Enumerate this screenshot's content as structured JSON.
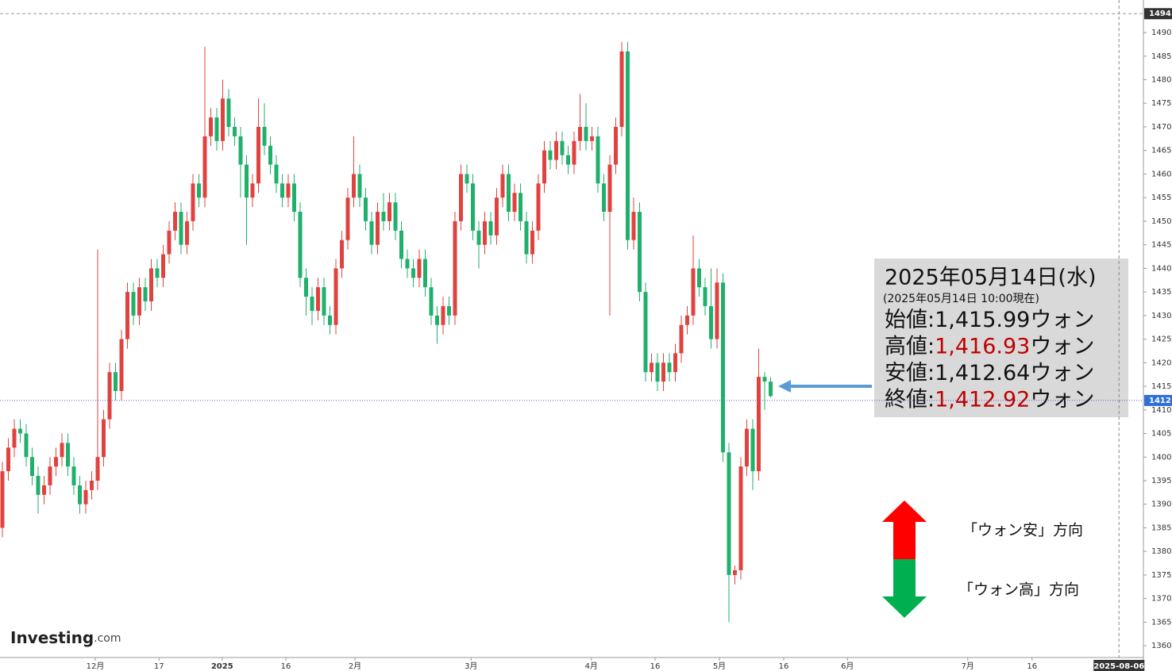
{
  "chart_data": {
    "type": "candlestick",
    "up_color": "#e0433f",
    "down_color": "#1fb06c",
    "ylim": [
      1357.5,
      1496.9
    ],
    "yticks": [
      1360,
      1365,
      1370,
      1375,
      1380,
      1385,
      1390,
      1395,
      1400,
      1405,
      1410,
      1415,
      1420,
      1425,
      1430,
      1435,
      1440,
      1445,
      1450,
      1455,
      1460,
      1465,
      1470,
      1475,
      1480,
      1485,
      1490
    ],
    "xlim": [
      -0.4,
      191.6
    ],
    "xticks": [
      {
        "value": 15.6,
        "label": "12月"
      },
      {
        "value": 26.3,
        "label": "17"
      },
      {
        "value": 36.9,
        "label": "2025",
        "bold": true
      },
      {
        "value": 47.6,
        "label": "16"
      },
      {
        "value": 59.2,
        "label": "2月"
      },
      {
        "value": 78.7,
        "label": "3月"
      },
      {
        "value": 98.9,
        "label": "4月"
      },
      {
        "value": 109.6,
        "label": "16"
      },
      {
        "value": 120.4,
        "label": "5月"
      },
      {
        "value": 131.2,
        "label": "16"
      },
      {
        "value": 141.9,
        "label": "6月"
      },
      {
        "value": 162.1,
        "label": "7月"
      },
      {
        "value": 172.9,
        "label": "16"
      }
    ],
    "cursor_date": {
      "value": 187.5,
      "label": "2025-08-06"
    },
    "top_marker": 1494,
    "last_marker": 1412,
    "ohlc": [
      [
        1385,
        1399,
        1383,
        1397
      ],
      [
        1397,
        1404,
        1395,
        1402
      ],
      [
        1402,
        1408,
        1400,
        1406
      ],
      [
        1406,
        1408,
        1403,
        1405
      ],
      [
        1405,
        1407,
        1398,
        1400
      ],
      [
        1400,
        1402,
        1394,
        1396
      ],
      [
        1396,
        1398,
        1388,
        1392
      ],
      [
        1392,
        1396,
        1390,
        1394
      ],
      [
        1394,
        1400,
        1392,
        1398
      ],
      [
        1398,
        1402,
        1396,
        1400
      ],
      [
        1400,
        1405,
        1398,
        1403
      ],
      [
        1403,
        1405,
        1396,
        1398
      ],
      [
        1398,
        1400,
        1392,
        1394
      ],
      [
        1394,
        1396,
        1388,
        1390
      ],
      [
        1390,
        1395,
        1388,
        1393
      ],
      [
        1393,
        1397,
        1391,
        1395
      ],
      [
        1395,
        1444,
        1393,
        1400
      ],
      [
        1400,
        1410,
        1398,
        1408
      ],
      [
        1408,
        1420,
        1406,
        1418
      ],
      [
        1418,
        1420,
        1412,
        1414
      ],
      [
        1414,
        1427,
        1412,
        1425
      ],
      [
        1425,
        1437,
        1423,
        1435
      ],
      [
        1435,
        1437,
        1428,
        1430
      ],
      [
        1430,
        1438,
        1428,
        1436
      ],
      [
        1436,
        1438,
        1431,
        1433
      ],
      [
        1433,
        1442,
        1431,
        1440
      ],
      [
        1440,
        1442,
        1436,
        1438
      ],
      [
        1438,
        1445,
        1436,
        1443
      ],
      [
        1443,
        1450,
        1441,
        1448
      ],
      [
        1448,
        1454,
        1446,
        1452
      ],
      [
        1452,
        1454,
        1443,
        1445
      ],
      [
        1445,
        1452,
        1443,
        1450
      ],
      [
        1450,
        1460,
        1448,
        1458
      ],
      [
        1458,
        1460,
        1453,
        1455
      ],
      [
        1455,
        1487,
        1453,
        1468
      ],
      [
        1468,
        1474,
        1466,
        1472
      ],
      [
        1472,
        1474,
        1465,
        1467
      ],
      [
        1467,
        1480,
        1465,
        1476
      ],
      [
        1476,
        1478,
        1468,
        1470
      ],
      [
        1470,
        1472,
        1466,
        1468
      ],
      [
        1468,
        1470,
        1455,
        1462
      ],
      [
        1462,
        1464,
        1445,
        1455
      ],
      [
        1455,
        1460,
        1453,
        1458
      ],
      [
        1458,
        1476,
        1456,
        1470
      ],
      [
        1470,
        1475,
        1464,
        1466
      ],
      [
        1466,
        1468,
        1460,
        1462
      ],
      [
        1462,
        1464,
        1456,
        1458
      ],
      [
        1458,
        1460,
        1453,
        1455
      ],
      [
        1455,
        1460,
        1453,
        1458
      ],
      [
        1458,
        1460,
        1450,
        1452
      ],
      [
        1452,
        1454,
        1436,
        1438
      ],
      [
        1438,
        1440,
        1430,
        1434
      ],
      [
        1434,
        1436,
        1428,
        1431
      ],
      [
        1431,
        1438,
        1429,
        1436
      ],
      [
        1436,
        1438,
        1428,
        1430
      ],
      [
        1430,
        1432,
        1426,
        1428
      ],
      [
        1428,
        1442,
        1426,
        1440
      ],
      [
        1440,
        1448,
        1438,
        1446
      ],
      [
        1446,
        1457,
        1444,
        1455
      ],
      [
        1455,
        1468,
        1453,
        1460
      ],
      [
        1460,
        1462,
        1453,
        1455
      ],
      [
        1455,
        1457,
        1448,
        1450
      ],
      [
        1450,
        1452,
        1443,
        1445
      ],
      [
        1445,
        1454,
        1443,
        1452
      ],
      [
        1452,
        1456,
        1448,
        1450
      ],
      [
        1450,
        1456,
        1448,
        1454
      ],
      [
        1454,
        1456,
        1446,
        1448
      ],
      [
        1448,
        1450,
        1440,
        1442
      ],
      [
        1442,
        1444,
        1438,
        1440
      ],
      [
        1440,
        1442,
        1436,
        1438
      ],
      [
        1438,
        1444,
        1436,
        1442
      ],
      [
        1442,
        1444,
        1434,
        1436
      ],
      [
        1436,
        1438,
        1428,
        1430
      ],
      [
        1430,
        1432,
        1424,
        1428
      ],
      [
        1428,
        1434,
        1426,
        1432
      ],
      [
        1432,
        1434,
        1428,
        1430
      ],
      [
        1430,
        1452,
        1428,
        1450
      ],
      [
        1450,
        1462,
        1448,
        1460
      ],
      [
        1460,
        1462,
        1456,
        1458
      ],
      [
        1458,
        1460,
        1446,
        1448
      ],
      [
        1448,
        1450,
        1440,
        1445
      ],
      [
        1445,
        1452,
        1443,
        1450
      ],
      [
        1450,
        1452,
        1445,
        1447
      ],
      [
        1447,
        1457,
        1445,
        1455
      ],
      [
        1455,
        1462,
        1453,
        1460
      ],
      [
        1460,
        1462,
        1450,
        1452
      ],
      [
        1452,
        1458,
        1450,
        1456
      ],
      [
        1456,
        1458,
        1448,
        1450
      ],
      [
        1450,
        1452,
        1441,
        1443
      ],
      [
        1443,
        1450,
        1441,
        1448
      ],
      [
        1448,
        1460,
        1446,
        1458
      ],
      [
        1458,
        1467,
        1456,
        1465
      ],
      [
        1465,
        1467,
        1461,
        1463
      ],
      [
        1463,
        1469,
        1461,
        1467
      ],
      [
        1467,
        1469,
        1462,
        1464
      ],
      [
        1464,
        1466,
        1460,
        1462
      ],
      [
        1462,
        1469,
        1460,
        1467
      ],
      [
        1467,
        1477,
        1465,
        1470
      ],
      [
        1470,
        1475,
        1465,
        1467
      ],
      [
        1467,
        1470,
        1465,
        1468
      ],
      [
        1468,
        1470,
        1456,
        1458
      ],
      [
        1458,
        1460,
        1450,
        1452
      ],
      [
        1452,
        1464,
        1430,
        1462
      ],
      [
        1462,
        1472,
        1460,
        1470
      ],
      [
        1470,
        1488,
        1468,
        1486
      ],
      [
        1486,
        1488,
        1444,
        1446
      ],
      [
        1446,
        1455,
        1444,
        1452
      ],
      [
        1452,
        1454,
        1433,
        1435
      ],
      [
        1435,
        1437,
        1416,
        1418
      ],
      [
        1418,
        1422,
        1416,
        1420
      ],
      [
        1420,
        1422,
        1414,
        1416
      ],
      [
        1416,
        1422,
        1414,
        1420
      ],
      [
        1420,
        1422,
        1416,
        1418
      ],
      [
        1418,
        1424,
        1416,
        1422
      ],
      [
        1422,
        1430,
        1420,
        1428
      ],
      [
        1428,
        1432,
        1426,
        1430
      ],
      [
        1430,
        1447,
        1428,
        1440
      ],
      [
        1440,
        1442,
        1434,
        1436
      ],
      [
        1436,
        1438,
        1430,
        1432
      ],
      [
        1432,
        1440,
        1423,
        1425
      ],
      [
        1425,
        1440,
        1423,
        1437
      ],
      [
        1437,
        1439,
        1399,
        1401
      ],
      [
        1401,
        1403,
        1365,
        1375
      ],
      [
        1375,
        1377,
        1373,
        1376
      ],
      [
        1376,
        1400,
        1374,
        1398
      ],
      [
        1398,
        1408,
        1396,
        1406
      ],
      [
        1406,
        1408,
        1393,
        1397
      ],
      [
        1397,
        1423,
        1395,
        1417
      ],
      [
        1417,
        1418,
        1410,
        1416
      ],
      [
        1415.99,
        1416.93,
        1412.64,
        1412.92
      ]
    ]
  },
  "info": {
    "date": "2025年05月14日(水)",
    "asof": "(2025年05月14日 10:00現在)",
    "lines": [
      {
        "label": "始値:",
        "value": "1,415.99",
        "unit": "ウォン",
        "highlight": false
      },
      {
        "label": "高値:",
        "value": "1,416.93",
        "unit": "ウォン",
        "highlight": true
      },
      {
        "label": "安値:",
        "value": "1,412.64",
        "unit": "ウォン",
        "highlight": false
      },
      {
        "label": "終値:",
        "value": "1,412.92",
        "unit": "ウォン",
        "highlight": true
      }
    ]
  },
  "legend": {
    "up": "「ウォン安」方向",
    "down": "「ウォン高」方向"
  },
  "logo": {
    "main": "Investing",
    "suffix": ".com"
  }
}
